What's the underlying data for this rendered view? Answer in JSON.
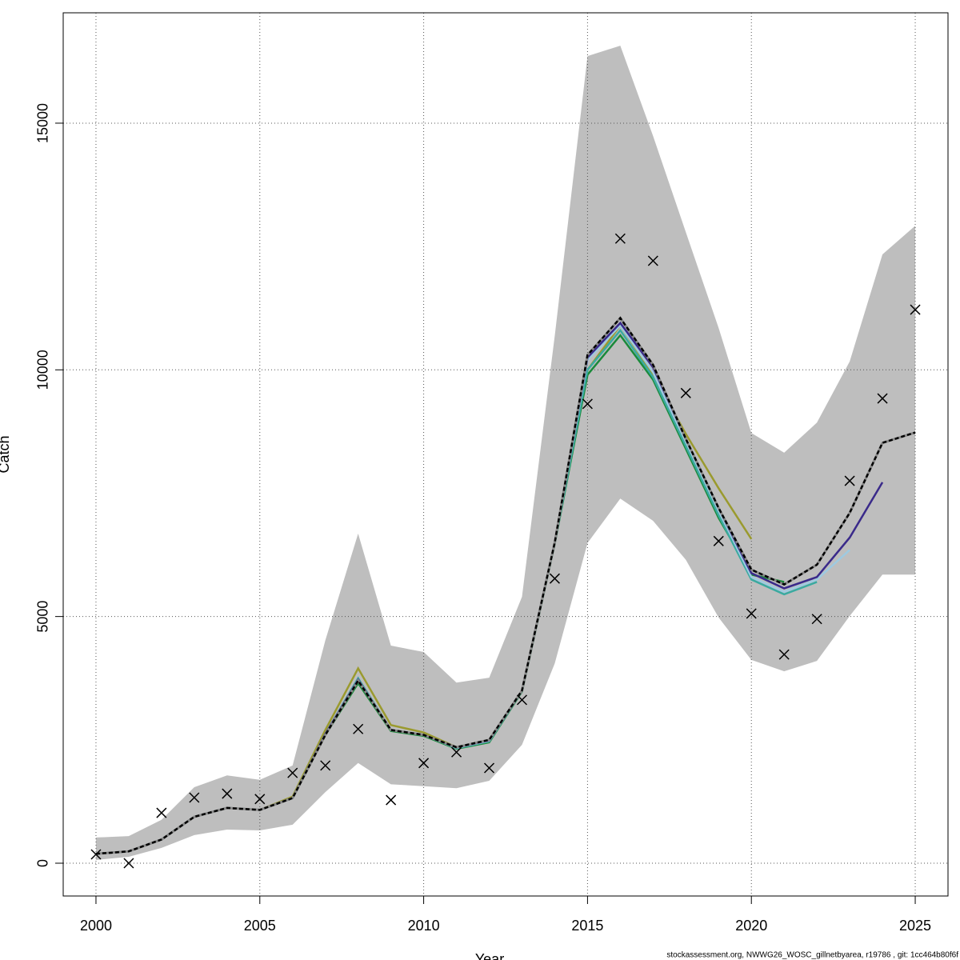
{
  "chart_data": {
    "type": "line",
    "xlabel": "Year",
    "ylabel": "Catch",
    "footer": "stockassessment.org, NWWG26_WOSC_gillnetbyarea, r19786 , git: 1cc464b80f6f",
    "x": [
      2000,
      2001,
      2002,
      2003,
      2004,
      2005,
      2006,
      2007,
      2008,
      2009,
      2010,
      2011,
      2012,
      2013,
      2014,
      2015,
      2016,
      2017,
      2018,
      2019,
      2020,
      2021,
      2022,
      2023,
      2024,
      2025
    ],
    "xlim": [
      1999,
      2026
    ],
    "ylim": [
      -665,
      17237
    ],
    "xticks": [
      2000,
      2005,
      2010,
      2015,
      2020,
      2025
    ],
    "yticks": [
      0,
      5000,
      10000,
      15000
    ],
    "grid": true,
    "band": {
      "color": "#bebebe",
      "upper": [
        520,
        550,
        880,
        1540,
        1780,
        1690,
        1980,
        4520,
        6680,
        4410,
        4280,
        3660,
        3760,
        5400,
        10690,
        16360,
        16570,
        14740,
        12790,
        10850,
        8720,
        8320,
        8930,
        10170,
        12340,
        12920
      ],
      "lower": [
        65,
        130,
        310,
        570,
        680,
        665,
        780,
        1440,
        2030,
        1600,
        1560,
        1520,
        1670,
        2400,
        4050,
        6490,
        7390,
        6940,
        6150,
        4980,
        4120,
        3890,
        4100,
        5010,
        5850,
        5850
      ]
    },
    "observations": {
      "color": "#000000",
      "values": [
        178,
        0,
        1020,
        1330,
        1410,
        1300,
        1830,
        1980,
        2720,
        1280,
        2030,
        2250,
        1930,
        3310,
        5770,
        9310,
        12660,
        12210,
        9530,
        6530,
        5060,
        4230,
        4950,
        7750,
        9420,
        11220
      ]
    },
    "series": [
      {
        "color": "#9a9a2e",
        "values": [
          190,
          240,
          480,
          940,
          1120,
          1080,
          1350,
          2700,
          3950,
          2800,
          2650,
          2350,
          2480,
          3500,
          6500,
          10000,
          10900,
          9900,
          8700,
          7600,
          6570,
          null,
          null,
          null,
          null,
          null
        ]
      },
      {
        "color": "#1a8a3a",
        "values": [
          190,
          240,
          480,
          940,
          1120,
          1080,
          1320,
          2600,
          3650,
          2680,
          2580,
          2320,
          2450,
          3480,
          6480,
          9900,
          10700,
          9800,
          8400,
          7000,
          5850,
          5700,
          null,
          null,
          null,
          null
        ]
      },
      {
        "color": "#3aaaa0",
        "values": [
          190,
          240,
          480,
          940,
          1120,
          1080,
          1320,
          2620,
          3750,
          2700,
          2600,
          2330,
          2470,
          3490,
          6490,
          10000,
          10800,
          9850,
          8450,
          7050,
          5750,
          5450,
          5700,
          null,
          null,
          null
        ]
      },
      {
        "color": "#9ecae1",
        "values": [
          190,
          240,
          480,
          940,
          1120,
          1080,
          1320,
          2620,
          3720,
          2700,
          2600,
          2340,
          2480,
          3500,
          6500,
          10200,
          10900,
          9950,
          8550,
          7150,
          5800,
          5500,
          5750,
          6350,
          null,
          null
        ]
      },
      {
        "color": "#3a2a8a",
        "values": [
          190,
          240,
          480,
          940,
          1120,
          1080,
          1320,
          2620,
          3720,
          2700,
          2600,
          2345,
          2490,
          3500,
          6500,
          10250,
          10950,
          10050,
          8600,
          7200,
          5880,
          5570,
          5800,
          6600,
          7720,
          null
        ]
      },
      {
        "color": "#000000",
        "dash": true,
        "values": [
          190,
          240,
          480,
          940,
          1120,
          1080,
          1320,
          2600,
          3700,
          2700,
          2600,
          2350,
          2500,
          3500,
          6500,
          10300,
          11050,
          10100,
          8600,
          7200,
          5950,
          5650,
          6050,
          7100,
          8520,
          8730
        ]
      }
    ]
  }
}
